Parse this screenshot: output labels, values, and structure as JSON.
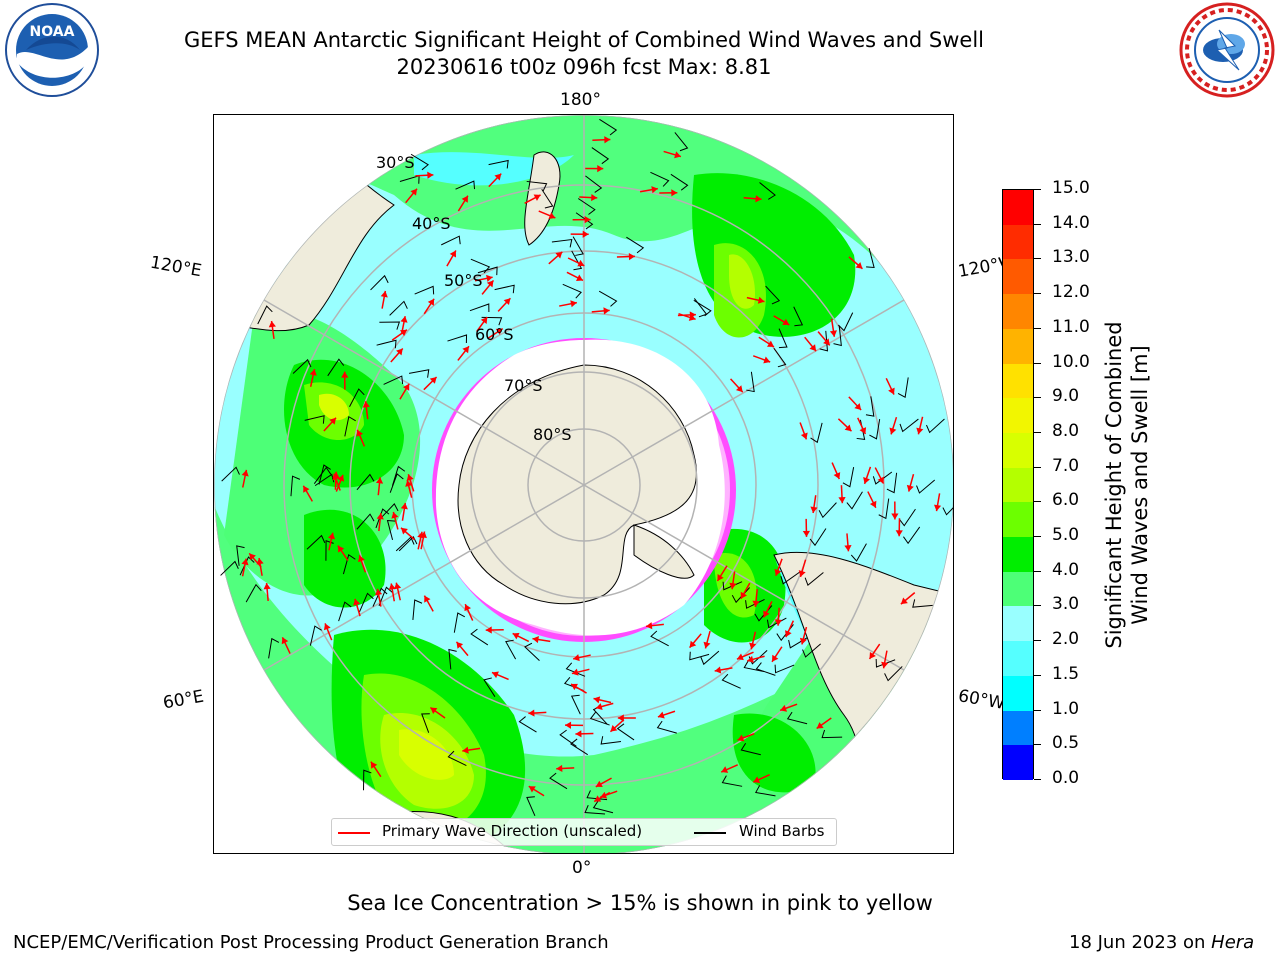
{
  "header": {
    "title_line1": "GEFS MEAN Antarctic Significant Height of Combined Wind Waves and Swell",
    "title_line2": "20230616 t00z 096h fcst   Max: 8.81"
  },
  "logos": {
    "left": {
      "icon": "noaa-logo-icon",
      "text": "NOAA"
    },
    "right": {
      "icon": "nws-logo-icon"
    }
  },
  "map": {
    "projection": "south-polar-stereographic",
    "lon_labels": {
      "top": "180°",
      "left_upper": "120°E",
      "right_upper": "120°W",
      "left_lower": "60°E",
      "right_lower": "60°W",
      "bottom": "0°"
    },
    "lat_labels": [
      "30°S",
      "40°S",
      "50°S",
      "60°S",
      "70°S",
      "80°S"
    ],
    "colors": {
      "land": "#efecdc",
      "ice_shelf": "#ffffff",
      "graticule": "#b3b3b3",
      "wave_arrow": "#ff0000",
      "wind_barb": "#000000"
    }
  },
  "colorbar": {
    "ticks": [
      "15.0",
      "14.0",
      "13.0",
      "12.0",
      "11.0",
      "10.0",
      "9.0",
      "8.0",
      "7.0",
      "6.0",
      "5.0",
      "4.0",
      "3.0",
      "2.0",
      "1.5",
      "1.0",
      "0.5",
      "0.0"
    ],
    "label_line1": "Significant Height of Combined",
    "label_line2": "Wind Waves and Swell [m]",
    "colors": [
      "#ff0000",
      "#ff2c00",
      "#ff5a00",
      "#ff8600",
      "#ffb300",
      "#ffe100",
      "#f2f600",
      "#d8ff00",
      "#b4ff00",
      "#6cff00",
      "#00ee00",
      "#4dff77",
      "#99ffff",
      "#55ffff",
      "#00ffff",
      "#007fff",
      "#0000ff"
    ]
  },
  "legend": {
    "primary_wave": "Primary Wave Direction (unscaled)",
    "wind_barbs": "Wind Barbs"
  },
  "footer": {
    "ice_note": "Sea Ice Concentration > 15% is shown in pink to yellow",
    "credit": "NCEP/EMC/Verification Post Processing Product Generation Branch",
    "date": "18 Jun 2023 on ",
    "machine": "Hera"
  }
}
